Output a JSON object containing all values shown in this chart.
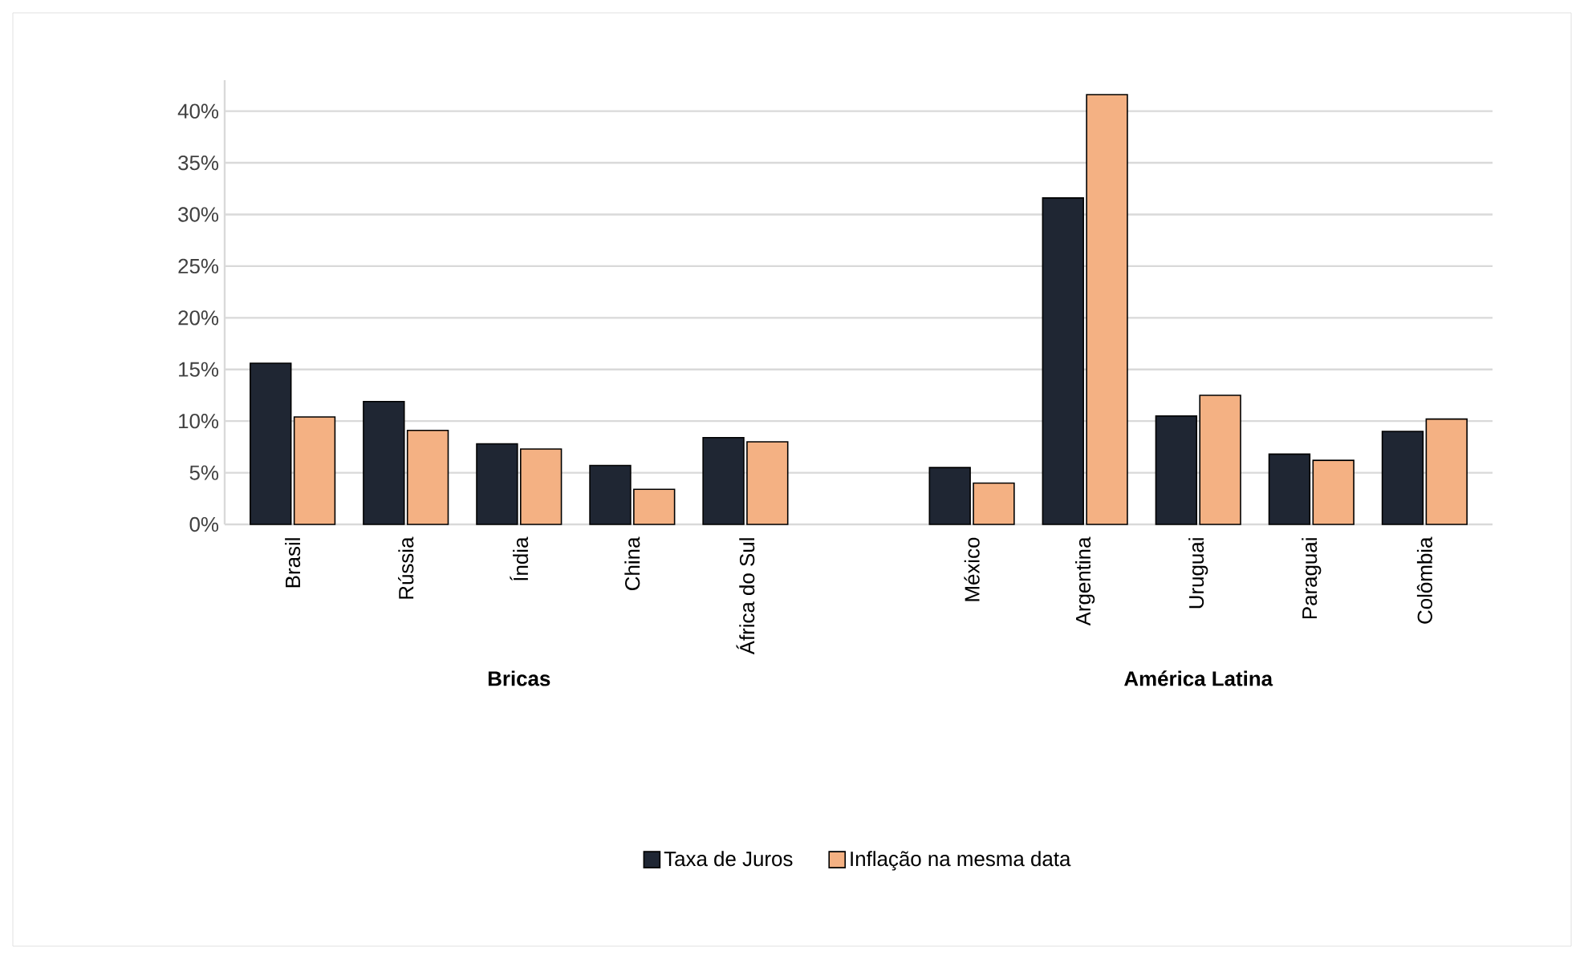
{
  "chart_data": {
    "type": "bar",
    "categories": [
      "Brasil",
      "Rússia",
      "Índia",
      "China",
      "África do Sul",
      null,
      "México",
      "Argentina",
      "Uruguai",
      "Paraguai",
      "Colômbia"
    ],
    "series": [
      {
        "name": "Taxa de Juros",
        "color": "#1f2633",
        "values": [
          15.6,
          11.9,
          7.8,
          5.7,
          8.4,
          null,
          5.5,
          31.6,
          10.5,
          6.8,
          9.0
        ]
      },
      {
        "name": "Inflação na mesma data",
        "color": "#f4b183",
        "values": [
          10.4,
          9.1,
          7.3,
          3.4,
          8.0,
          null,
          4.0,
          41.6,
          12.5,
          6.2,
          10.2
        ]
      }
    ],
    "ylim": [
      0,
      43
    ],
    "yticks": [
      {
        "value": 0,
        "label": "0%"
      },
      {
        "value": 5,
        "label": "5%"
      },
      {
        "value": 10,
        "label": "10%"
      },
      {
        "value": 15,
        "label": "15%"
      },
      {
        "value": 20,
        "label": "20%"
      },
      {
        "value": 25,
        "label": "25%"
      },
      {
        "value": 30,
        "label": "30%"
      },
      {
        "value": 35,
        "label": "35%"
      },
      {
        "value": 40,
        "label": "40%"
      }
    ],
    "annotations": [
      "Bricas",
      "América Latina"
    ],
    "grid": "y",
    "legend": "bottom"
  }
}
